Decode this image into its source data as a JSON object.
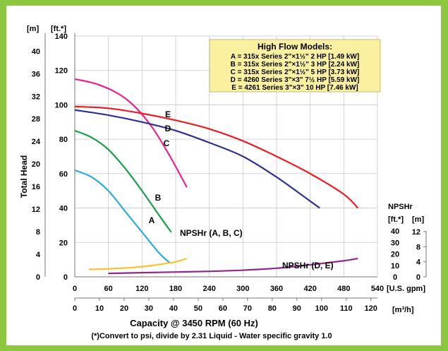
{
  "chart_data": {
    "type": "line",
    "title": "High Flow Models:",
    "legend_placement": "top-right",
    "legend_lines": [
      "A = 315x Series 2\"×1½\" 2 HP [1.49 kW]",
      "B = 315x Series 2\"×1½\" 3 HP [2.24 kW]",
      "C = 315x Series 2\"×1½\" 5 HP [3.73 kW]",
      "D = 4260 Series 3\"×3\" 7½ HP [5.59 kW]",
      "E = 4261 Series 3\"×3\" 10 HP [7.46 kW]"
    ],
    "ylabel": "Total Head",
    "y_unit_m": "[m]",
    "y_unit_ft": "[ft.*]",
    "xlabel": "Capacity @ 3450 RPM (60 Hz)",
    "x_unit_gpm": "[U.S. gpm]",
    "x_unit_m3h": "[m³/h]",
    "footnote": "(*)Convert to psi, divide by 2.31     Liquid - Water specific gravity 1.0",
    "grid": true,
    "xlim": [
      0,
      540
    ],
    "ylim": [
      0,
      140
    ],
    "x_ticks_gpm": [
      "0",
      "60",
      "120",
      "180",
      "240",
      "300",
      "360",
      "420",
      "480",
      "540"
    ],
    "x_ticks_m3h": [
      "0",
      "10",
      "20",
      "30",
      "40",
      "50",
      "60",
      "70",
      "80",
      "90",
      "100",
      "110",
      "120"
    ],
    "y_ticks_ft": [
      "0",
      "20",
      "40",
      "60",
      "80",
      "100",
      "120",
      "140"
    ],
    "y_ticks_m": [
      "0",
      "4",
      "8",
      "12",
      "16",
      "20",
      "24",
      "28",
      "32",
      "36",
      "40"
    ],
    "npshr_title": "NPSHr",
    "npshr_unit_ft": "[ft.*]",
    "npshr_unit_m": "[m]",
    "npshr_ticks_ft": [
      "0",
      "10",
      "20",
      "30",
      "40"
    ],
    "npshr_ticks_m": [
      "0",
      "4",
      "8",
      "12"
    ],
    "npshr_ylim_ft": [
      0,
      40
    ],
    "series": [
      {
        "name": "A",
        "color": "#29abe2",
        "x": [
          0,
          30,
          60,
          90,
          120,
          150,
          170
        ],
        "y": [
          62,
          58,
          50,
          38,
          26,
          14,
          8
        ]
      },
      {
        "name": "B",
        "color": "#1a9e4b",
        "x": [
          0,
          30,
          60,
          90,
          120,
          150,
          172
        ],
        "y": [
          85,
          81,
          74,
          63,
          50,
          36,
          26
        ]
      },
      {
        "name": "C",
        "color": "#ec2290",
        "x": [
          0,
          40,
          80,
          110,
          140,
          170,
          200
        ],
        "y": [
          115,
          112,
          106,
          98,
          86,
          70,
          52
        ]
      },
      {
        "name": "D",
        "color": "#2e3192",
        "x": [
          0,
          60,
          120,
          180,
          240,
          300,
          360,
          420,
          437
        ],
        "y": [
          97,
          94,
          90,
          85,
          78,
          70,
          58,
          44,
          40
        ]
      },
      {
        "name": "E",
        "color": "#ed1c24",
        "x": [
          0,
          60,
          120,
          180,
          240,
          300,
          360,
          420,
          480,
          505
        ],
        "y": [
          99,
          98,
          95,
          91,
          86,
          79,
          70,
          60,
          48,
          40
        ]
      }
    ],
    "npshr_series": [
      {
        "name": "NPSHr (A, B, C)",
        "color": "#f7c331",
        "x": [
          25,
          60,
          100,
          140,
          160,
          180,
          200
        ],
        "y": [
          6.5,
          7,
          8,
          10,
          11.5,
          13,
          16
        ]
      },
      {
        "name": "NPSHr (D, E)",
        "color": "#92278f",
        "x": [
          60,
          120,
          180,
          240,
          300,
          360,
          420,
          480,
          505
        ],
        "y": [
          3,
          3.6,
          4.2,
          4.8,
          5.8,
          7.5,
          10.5,
          14,
          16
        ]
      }
    ],
    "curve_labels": [
      "A",
      "B",
      "C",
      "D",
      "E"
    ],
    "npshr_labels": [
      "NPSHr (A, B, C)",
      "NPSHr (D, E)"
    ]
  }
}
